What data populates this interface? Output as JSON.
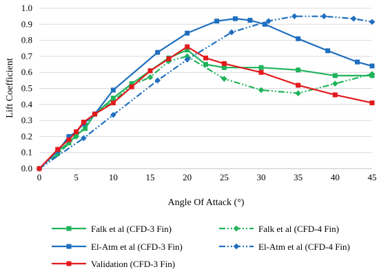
{
  "chart_data": {
    "type": "line",
    "xlabel": "Angle Of Attack (°)",
    "ylabel": "Lift Coefficient",
    "xlim": [
      0,
      45
    ],
    "ylim": [
      0,
      1.0
    ],
    "xticks": [
      "0",
      "5",
      "10",
      "15",
      "20",
      "25",
      "30",
      "35",
      "40",
      "45"
    ],
    "yticks": [
      "0.0",
      "0.1",
      "0.2",
      "0.3",
      "0.4",
      "0.5",
      "0.6",
      "0.7",
      "0.8",
      "0.9",
      "1.0"
    ],
    "grid": "horizontal",
    "legend_position": "bottom",
    "series": [
      {
        "name": "Falk et al (CFD-3 Fin)",
        "color": "#1fb35a",
        "style": "solid",
        "marker": "square",
        "points": [
          [
            0,
            0
          ],
          [
            2.5,
            0.11
          ],
          [
            4,
            0.16
          ],
          [
            5,
            0.21
          ],
          [
            6.2,
            0.25
          ],
          [
            7.5,
            0.34
          ],
          [
            10,
            0.44
          ],
          [
            12.5,
            0.53
          ],
          [
            15,
            0.61
          ],
          [
            17.5,
            0.69
          ],
          [
            20,
            0.74
          ],
          [
            22.5,
            0.65
          ],
          [
            25,
            0.63
          ],
          [
            30,
            0.63
          ],
          [
            35,
            0.615
          ],
          [
            40,
            0.58
          ],
          [
            45,
            0.58
          ]
        ]
      },
      {
        "name": "Falk et al (CFD-4 Fin)",
        "color": "#1fb35a",
        "style": "dashdotdot",
        "marker": "diamond",
        "points": [
          [
            0,
            0
          ],
          [
            2.5,
            0.09
          ],
          [
            5,
            0.2
          ],
          [
            7.5,
            0.34
          ],
          [
            10,
            0.42
          ],
          [
            12.5,
            0.52
          ],
          [
            15,
            0.57
          ],
          [
            17.5,
            0.67
          ],
          [
            20,
            0.7
          ],
          [
            25,
            0.56
          ],
          [
            30,
            0.49
          ],
          [
            35,
            0.47
          ],
          [
            40,
            0.53
          ],
          [
            45,
            0.59
          ]
        ]
      },
      {
        "name": "El-Atm et al (CFD-3 Fin)",
        "color": "#1f6fbf",
        "style": "solid",
        "marker": "square",
        "points": [
          [
            0,
            0
          ],
          [
            2.5,
            0.11
          ],
          [
            4,
            0.2
          ],
          [
            5,
            0.23
          ],
          [
            6,
            0.28
          ],
          [
            7.5,
            0.34
          ],
          [
            10,
            0.49
          ],
          [
            16,
            0.725
          ],
          [
            20,
            0.845
          ],
          [
            24,
            0.92
          ],
          [
            26.5,
            0.935
          ],
          [
            28.5,
            0.925
          ],
          [
            30.5,
            0.9
          ],
          [
            35,
            0.81
          ],
          [
            39,
            0.735
          ],
          [
            43,
            0.665
          ],
          [
            45,
            0.64
          ]
        ]
      },
      {
        "name": "El-Atm et al (CFD-4 Fin)",
        "color": "#1f6fbf",
        "style": "dashdotdot",
        "marker": "diamond",
        "points": [
          [
            0,
            0
          ],
          [
            6,
            0.19
          ],
          [
            10,
            0.335
          ],
          [
            16,
            0.55
          ],
          [
            20,
            0.68
          ],
          [
            26,
            0.85
          ],
          [
            31,
            0.92
          ],
          [
            34.5,
            0.95
          ],
          [
            38.5,
            0.95
          ],
          [
            42.5,
            0.935
          ],
          [
            45,
            0.915
          ]
        ]
      },
      {
        "name": "Validation (CFD-3 Fin)",
        "color": "#e31a1c",
        "style": "solid",
        "marker": "square",
        "points": [
          [
            0,
            0
          ],
          [
            2.5,
            0.12
          ],
          [
            4,
            0.18
          ],
          [
            5,
            0.23
          ],
          [
            6,
            0.29
          ],
          [
            7.5,
            0.34
          ],
          [
            10,
            0.41
          ],
          [
            12.5,
            0.51
          ],
          [
            15,
            0.61
          ],
          [
            17.5,
            0.685
          ],
          [
            20,
            0.76
          ],
          [
            22.5,
            0.69
          ],
          [
            25,
            0.655
          ],
          [
            30,
            0.6
          ],
          [
            35,
            0.52
          ],
          [
            40,
            0.46
          ],
          [
            45,
            0.41
          ]
        ]
      }
    ]
  }
}
